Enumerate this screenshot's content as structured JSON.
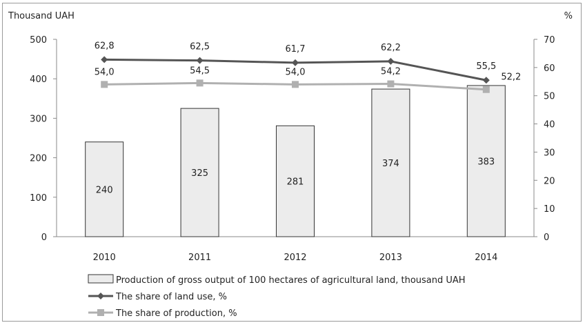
{
  "chart_data": {
    "type": "bar+line",
    "title": "",
    "left_axis": {
      "label": "Thousand UAH",
      "min": 0,
      "max": 500,
      "ticks": [
        0,
        100,
        200,
        300,
        400,
        500
      ]
    },
    "right_axis": {
      "label": "%",
      "min": 0,
      "max": 70,
      "ticks": [
        0,
        10,
        20,
        30,
        40,
        50,
        60,
        70
      ]
    },
    "categories": [
      "2010",
      "2011",
      "2012",
      "2013",
      "2014"
    ],
    "bars": {
      "name": "Production of gross output of 100 hectares of agricultural land, thousand UAH",
      "values": [
        240,
        325,
        281,
        374,
        383
      ],
      "labels": [
        "240",
        "325",
        "281",
        "374",
        "383"
      ],
      "color": "#ececec"
    },
    "lines": [
      {
        "name": "The share of land use, %",
        "values": [
          62.8,
          62.5,
          61.7,
          62.2,
          55.5
        ],
        "labels": [
          "62,8",
          "62,5",
          "61,7",
          "62,2",
          "55,5"
        ],
        "color": "#555555",
        "marker": "diamond"
      },
      {
        "name": "The share of production, %",
        "values": [
          54.0,
          54.5,
          54.0,
          54.2,
          52.2
        ],
        "labels": [
          "54,0",
          "54,5",
          "54,0",
          "54,2",
          "52,2"
        ],
        "color": "#b0b0b0",
        "marker": "square"
      }
    ],
    "grid": false,
    "legend_position": "bottom"
  }
}
